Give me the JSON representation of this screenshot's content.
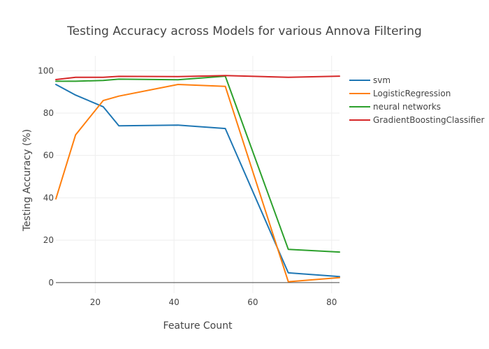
{
  "chart_data": {
    "type": "line",
    "title": "Testing Accuracy across Models for various Annova Filtering",
    "xlabel": "Feature Count",
    "ylabel": "Testing Accuracy (%)",
    "xlim": [
      10,
      82
    ],
    "ylim": [
      -5,
      107
    ],
    "x_ticks": [
      20,
      40,
      60,
      80
    ],
    "y_ticks": [
      0,
      20,
      40,
      60,
      80,
      100
    ],
    "grid": true,
    "legend_position": "right",
    "series": [
      {
        "name": "svm",
        "color": "#1f77b4",
        "x": [
          10,
          15,
          22,
          26,
          41,
          53,
          69,
          82
        ],
        "y": [
          93.5,
          88.5,
          83,
          74,
          74.3,
          72.7,
          4.6,
          2.8
        ]
      },
      {
        "name": "LogisticRegression",
        "color": "#ff7f0e",
        "x": [
          10,
          15,
          22,
          26,
          41,
          53,
          69,
          82
        ],
        "y": [
          39.5,
          69.7,
          85.9,
          88,
          93.5,
          92.6,
          0.4,
          2.3
        ]
      },
      {
        "name": "neural networks",
        "color": "#2ca02c",
        "x": [
          10,
          15,
          22,
          26,
          41,
          53,
          69,
          82
        ],
        "y": [
          95,
          95,
          95.4,
          96,
          95.7,
          97.4,
          15.7,
          14.4
        ]
      },
      {
        "name": "GradientBoostingClassifier",
        "color": "#d62728",
        "x": [
          10,
          15,
          22,
          26,
          41,
          53,
          69,
          82
        ],
        "y": [
          95.8,
          96.9,
          96.9,
          97.3,
          97.2,
          97.7,
          96.9,
          97.4
        ]
      }
    ]
  }
}
